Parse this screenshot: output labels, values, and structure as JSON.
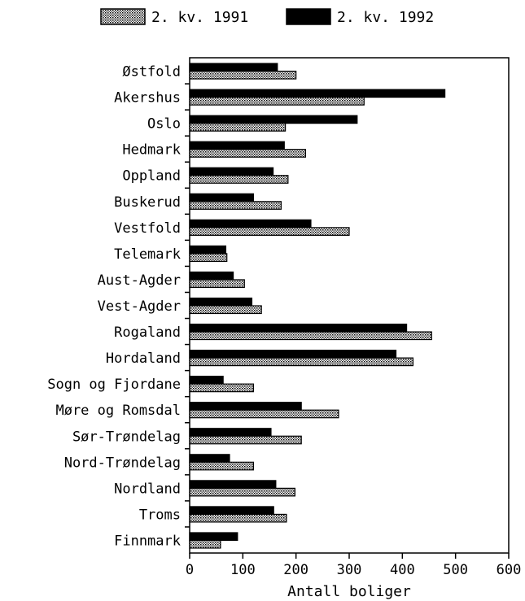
{
  "chart_data": {
    "type": "bar",
    "orientation": "horizontal",
    "categories": [
      "Østfold",
      "Akershus",
      "Oslo",
      "Hedmark",
      "Oppland",
      "Buskerud",
      "Vestfold",
      "Telemark",
      "Aust-Agder",
      "Vest-Agder",
      "Rogaland",
      "Hordaland",
      "Sogn og Fjordane",
      "Møre og Romsdal",
      "Sør-Trøndelag",
      "Nord-Trøndelag",
      "Nordland",
      "Troms",
      "Finnmark"
    ],
    "series": [
      {
        "name": "2. kv. 1991",
        "color": "#b8b8b8",
        "pattern": "dotted",
        "values": [
          200,
          328,
          180,
          218,
          185,
          172,
          300,
          70,
          103,
          135,
          455,
          420,
          120,
          280,
          210,
          120,
          198,
          182,
          58
        ]
      },
      {
        "name": "2. kv. 1992",
        "color": "#000000",
        "pattern": "solid",
        "values": [
          165,
          480,
          315,
          178,
          157,
          120,
          228,
          68,
          82,
          117,
          408,
          388,
          63,
          210,
          153,
          75,
          162,
          158,
          90
        ]
      }
    ],
    "xlabel": "Antall boliger",
    "xlim": [
      0,
      600
    ],
    "xticks": [
      "0",
      "100",
      "200",
      "300",
      "400",
      "500",
      "600"
    ],
    "legend_position": "top",
    "grid": false
  }
}
